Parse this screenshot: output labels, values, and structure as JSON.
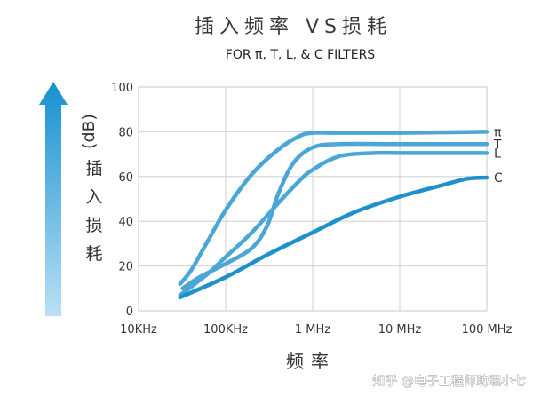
{
  "chart_data": {
    "type": "line",
    "title": "插入频率  VS损耗",
    "subtitle": "FOR π, T, L, & C FILTERS",
    "xlabel": "频率",
    "ylabel_unit": "(dB)",
    "ylabel_chars": [
      "插",
      "入",
      "损",
      "耗"
    ],
    "x_scale": "log",
    "x_ticks": [
      {
        "value": 10000,
        "label": "10KHz"
      },
      {
        "value": 100000,
        "label": "100KHz"
      },
      {
        "value": 1000000,
        "label": "1 MHz"
      },
      {
        "value": 10000000,
        "label": "10 MHz"
      },
      {
        "value": 100000000,
        "label": "100 MHz"
      }
    ],
    "y_ticks": [
      0,
      20,
      40,
      60,
      80,
      100
    ],
    "xlim": [
      10000,
      100000000
    ],
    "ylim": [
      0,
      100
    ],
    "grid": true,
    "series": [
      {
        "name": "π",
        "color": "#4aa6d6",
        "x": [
          30000,
          40000,
          60000,
          100000,
          200000,
          400000,
          700000,
          1000000,
          2000000,
          10000000,
          100000000
        ],
        "y": [
          12,
          18,
          30,
          45,
          61,
          72,
          78,
          79.5,
          79.5,
          79.5,
          80
        ]
      },
      {
        "name": "T",
        "color": "#4aa6d6",
        "x": [
          32000,
          50000,
          100000,
          200000,
          300000,
          400000,
          600000,
          1000000,
          2000000,
          10000000,
          100000000
        ],
        "y": [
          10,
          15,
          21,
          28,
          38,
          52,
          66,
          73,
          74.5,
          74.5,
          74.5
        ]
      },
      {
        "name": "L",
        "color": "#4aa6d6",
        "x": [
          30000,
          60000,
          100000,
          200000,
          400000,
          700000,
          1000000,
          2000000,
          5000000,
          10000000,
          100000000
        ],
        "y": [
          7,
          16,
          24,
          35,
          48,
          58,
          63,
          69,
          70.5,
          70.5,
          70.5
        ]
      },
      {
        "name": "C",
        "color": "#1f90cc",
        "x": [
          30000,
          100000,
          300000,
          1000000,
          3000000,
          10000000,
          30000000,
          60000000,
          100000000
        ],
        "y": [
          6,
          15,
          25,
          35,
          44,
          51,
          56,
          59,
          59.5
        ]
      }
    ]
  },
  "watermark": "知乎 @电子工程师助理小七"
}
